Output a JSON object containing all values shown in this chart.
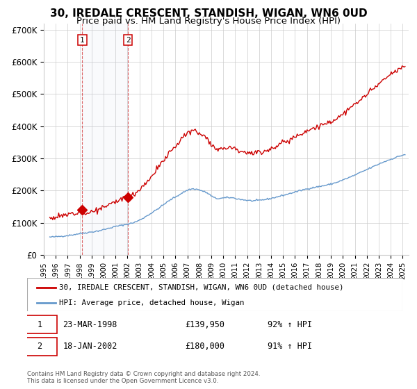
{
  "title": "30, IREDALE CRESCENT, STANDISH, WIGAN, WN6 0UD",
  "subtitle": "Price paid vs. HM Land Registry's House Price Index (HPI)",
  "legend_line1": "30, IREDALE CRESCENT, STANDISH, WIGAN, WN6 0UD (detached house)",
  "legend_line2": "HPI: Average price, detached house, Wigan",
  "footnote": "Contains HM Land Registry data © Crown copyright and database right 2024.\nThis data is licensed under the Open Government Licence v3.0.",
  "transactions": [
    {
      "label": "1",
      "date": "23-MAR-1998",
      "price": "£139,950",
      "hpi": "92% ↑ HPI",
      "year": 1998.22
    },
    {
      "label": "2",
      "date": "18-JAN-2002",
      "price": "£180,000",
      "hpi": "91% ↑ HPI",
      "year": 2002.04
    }
  ],
  "transaction_prices": [
    139950,
    180000
  ],
  "ylim": [
    0,
    720000
  ],
  "xlim_start": 1995.0,
  "xlim_end": 2025.5,
  "yticks": [
    0,
    100000,
    200000,
    300000,
    400000,
    500000,
    600000,
    700000
  ],
  "ytick_labels": [
    "£0",
    "£100K",
    "£200K",
    "£300K",
    "£400K",
    "£500K",
    "£600K",
    "£700K"
  ],
  "red_color": "#cc0000",
  "blue_color": "#6699cc",
  "background_color": "#ffffff",
  "grid_color": "#cccccc",
  "title_fontsize": 11,
  "subtitle_fontsize": 9.5
}
